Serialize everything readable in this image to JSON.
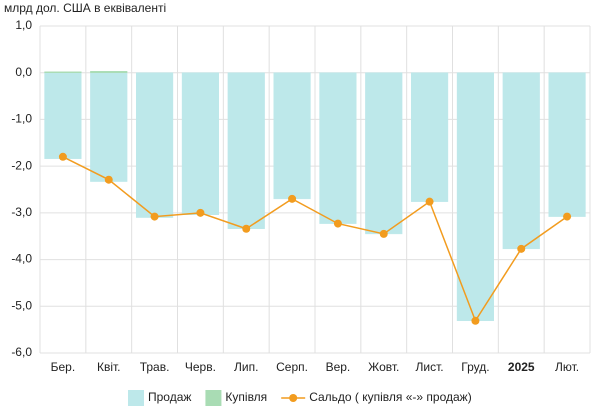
{
  "chart_data": {
    "type": "bar",
    "title": "млрд дол. США в еквіваленті",
    "categories": [
      "Бер.",
      "Квіт.",
      "Трав.",
      "Черв.",
      "Лип.",
      "Серп.",
      "Вер.",
      "Жовт.",
      "Лист.",
      "Груд.",
      "2025",
      "Лют."
    ],
    "series": [
      {
        "name": "Продаж",
        "type": "bar",
        "color": "#bde8ea",
        "values": [
          -1.84,
          -2.33,
          -3.1,
          -3.04,
          -3.34,
          -2.7,
          -3.23,
          -3.45,
          -2.76,
          -5.31,
          -3.77,
          -3.08
        ]
      },
      {
        "name": "Купівля",
        "type": "bar",
        "color": "#a9dcb4",
        "values": [
          0.02,
          0.03,
          0,
          0,
          0,
          0,
          0,
          0,
          0,
          0,
          0,
          0
        ]
      },
      {
        "name": "Сальдо ( купівля «-» продаж)",
        "type": "line",
        "color": "#f29c1f",
        "values": [
          -1.8,
          -2.29,
          -3.08,
          -3.0,
          -3.34,
          -2.7,
          -3.23,
          -3.45,
          -2.76,
          -5.31,
          -3.77,
          -3.08
        ]
      }
    ],
    "ylim": [
      -6,
      1
    ],
    "yticks": [
      {
        "value": -6,
        "label": "-6,0"
      },
      {
        "value": -5,
        "label": "-5,0"
      },
      {
        "value": -4,
        "label": "-4,0"
      },
      {
        "value": -3,
        "label": "-3,0"
      },
      {
        "value": -2,
        "label": "-2,0"
      },
      {
        "value": -1,
        "label": "-1,0"
      },
      {
        "value": 0,
        "label": "0,0"
      },
      {
        "value": 1,
        "label": "1,0"
      }
    ],
    "grid": true
  }
}
